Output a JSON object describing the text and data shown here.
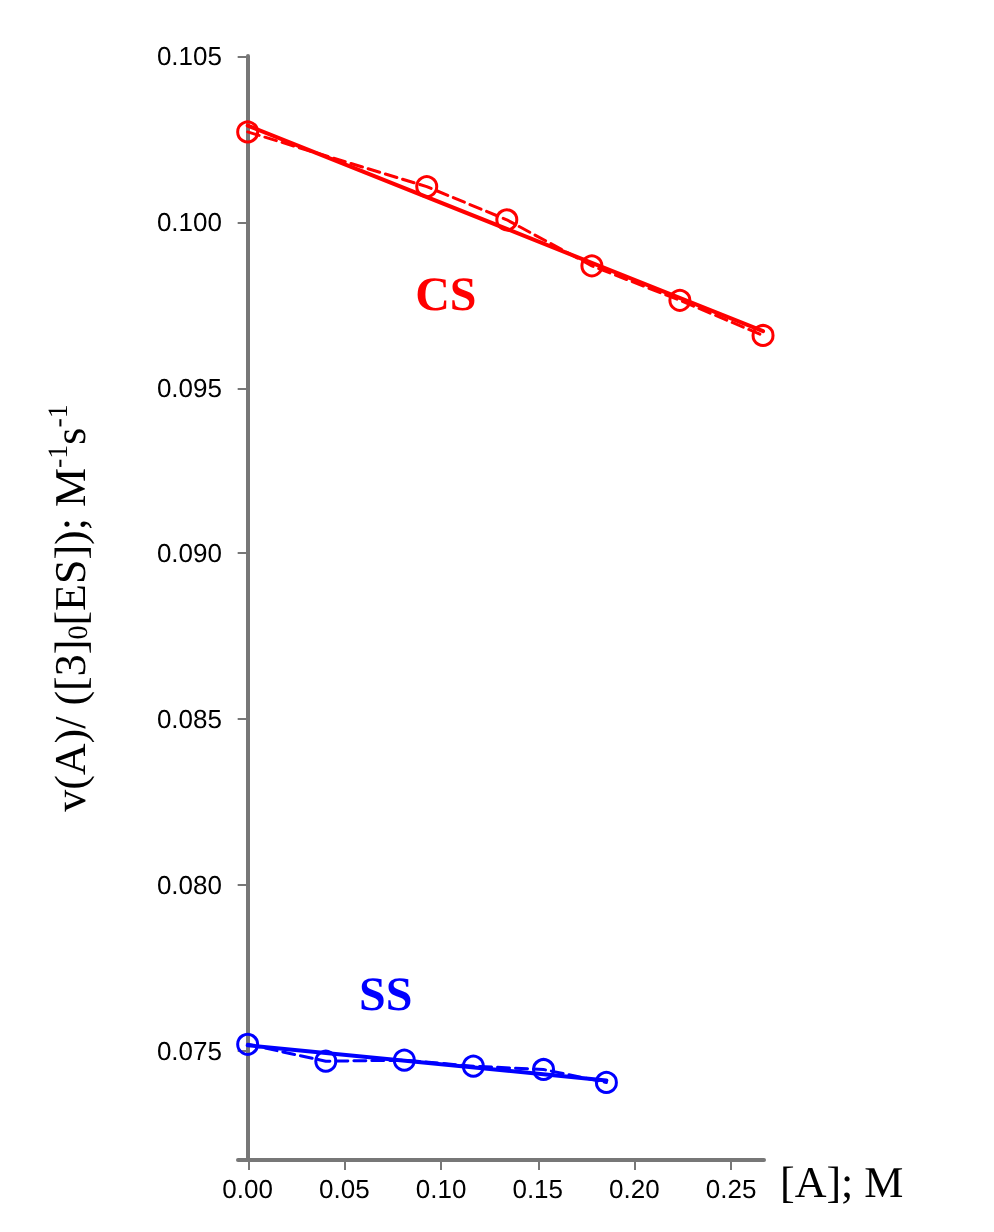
{
  "chart_data": {
    "type": "line",
    "xlabel": "[A]; M",
    "ylabel": "v(A)/ ([3]$_{0}$[ES]); M$^{-1}$s$^{-1}$",
    "xlim": [
      -0.005,
      0.267
    ],
    "xticks": [
      {
        "value": 0,
        "label": "0.00"
      },
      {
        "value": 0.05,
        "label": "0.05"
      },
      {
        "value": 0.1,
        "label": "0.10"
      },
      {
        "value": 0.15,
        "label": "0.15"
      },
      {
        "value": 0.2,
        "label": "0.20"
      },
      {
        "value": 0.25,
        "label": "0.25"
      }
    ],
    "ylim": [
      0.0717,
      0.105
    ],
    "yticks": [
      {
        "value": 0.075,
        "label": "0.075"
      },
      {
        "value": 0.08,
        "label": "0.080"
      },
      {
        "value": 0.085,
        "label": "0.085"
      },
      {
        "value": 0.09,
        "label": "0.090"
      },
      {
        "value": 0.095,
        "label": "0.095"
      },
      {
        "value": 0.1,
        "label": "0.100"
      },
      {
        "value": 0.105,
        "label": "0.105"
      }
    ],
    "grid": false,
    "legend": false,
    "series": [
      {
        "name": "CS",
        "color": "#ff0000",
        "marker": "circle",
        "line_style": "dashed",
        "x": [
          0,
          0.0926,
          0.134,
          0.178,
          0.2235,
          0.2665
        ],
        "values": [
          0.10271,
          0.10106,
          0.10006,
          0.09867,
          0.09763,
          0.09657
        ]
      },
      {
        "color": "#ff0000",
        "marker": "none",
        "line_style": "solid",
        "x": [
          0,
          0.2665
        ],
        "values": [
          0.1029,
          0.0967
        ]
      },
      {
        "name": "SS",
        "color": "#0000ff",
        "marker": "circle",
        "line_style": "dashed",
        "x": [
          0,
          0.0404,
          0.081,
          0.1167,
          0.153,
          0.1855
        ],
        "values": [
          0.07519,
          0.07468,
          0.07471,
          0.07453,
          0.07443,
          0.07404
        ]
      },
      {
        "color": "#0000ff",
        "marker": "none",
        "line_style": "solid",
        "x": [
          0,
          0.1855
        ],
        "values": [
          0.07516,
          0.0741
        ]
      }
    ]
  }
}
